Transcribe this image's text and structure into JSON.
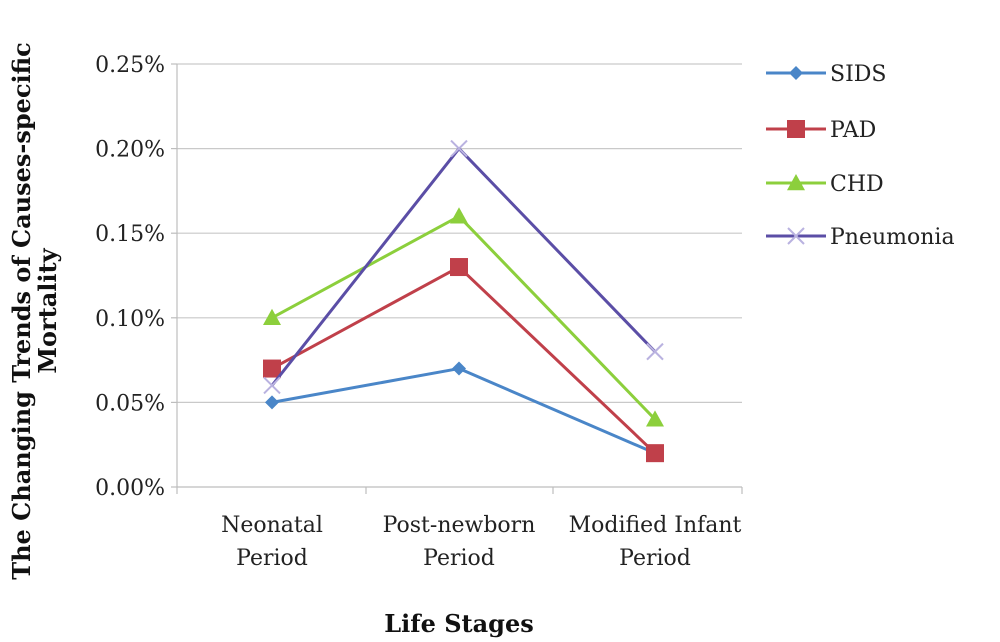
{
  "chart_data": {
    "type": "line",
    "title": "",
    "xlabel": "Life Stages",
    "ylabel_lines": [
      "The Changing Trends of Causes-specific",
      "Mortality"
    ],
    "categories": [
      [
        "Neonatal",
        "Period"
      ],
      [
        "Post-newborn",
        "Period"
      ],
      [
        "Modified Infant",
        "Period"
      ]
    ],
    "ylim": [
      0,
      0.25
    ],
    "yticks": [
      "0.00%",
      "0.05%",
      "0.10%",
      "0.15%",
      "0.20%",
      "0.25%"
    ],
    "ytick_values": [
      0,
      0.05,
      0.1,
      0.15,
      0.2,
      0.25
    ],
    "grid": true,
    "legend_position": "right",
    "series": [
      {
        "name": "SIDS",
        "values": [
          0.05,
          0.07,
          0.02
        ],
        "color": "#4a86c8",
        "marker": "diamond"
      },
      {
        "name": "PAD",
        "values": [
          0.07,
          0.13,
          0.02
        ],
        "color": "#c0404a",
        "marker": "square"
      },
      {
        "name": "CHD",
        "values": [
          0.1,
          0.16,
          0.04
        ],
        "color": "#8ccf3c",
        "marker": "triangle"
      },
      {
        "name": "Pneumonia",
        "values": [
          0.06,
          0.2,
          0.08
        ],
        "color": "#5b4ea6",
        "marker": "x"
      }
    ]
  }
}
